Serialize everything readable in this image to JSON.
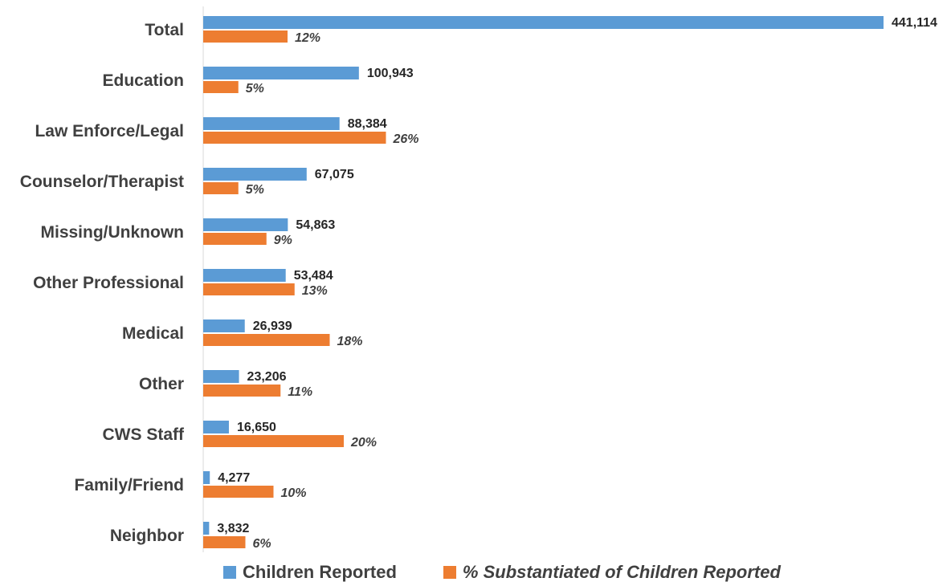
{
  "chart_data": {
    "type": "bar",
    "orientation": "horizontal",
    "categories": [
      "Total",
      "Education",
      "Law Enforce/Legal",
      "Counselor/Therapist",
      "Missing/Unknown",
      "Other Professional",
      "Medical",
      "Other",
      "CWS Staff",
      "Family/Friend",
      "Neighbor"
    ],
    "series": [
      {
        "name": "Children Reported",
        "color": "#5b9bd5",
        "values": [
          441114,
          100943,
          88384,
          67075,
          54863,
          53484,
          26939,
          23206,
          16650,
          4277,
          3832
        ],
        "labels": [
          "441,114",
          "100,943",
          "88,384",
          "67,075",
          "54,863",
          "53,484",
          "26,939",
          "23,206",
          "16,650",
          "4,277",
          "3,832"
        ]
      },
      {
        "name": "% Substantiated of Children Reported",
        "color": "#ed7d31",
        "values": [
          12,
          5,
          26,
          5,
          9,
          13,
          18,
          11,
          20,
          10,
          6
        ],
        "labels": [
          "12%",
          "5%",
          "26%",
          "5%",
          "9%",
          "13%",
          "18%",
          "11%",
          "20%",
          "10%",
          "6%"
        ]
      }
    ],
    "grid": false,
    "legend_position": "bottom"
  }
}
